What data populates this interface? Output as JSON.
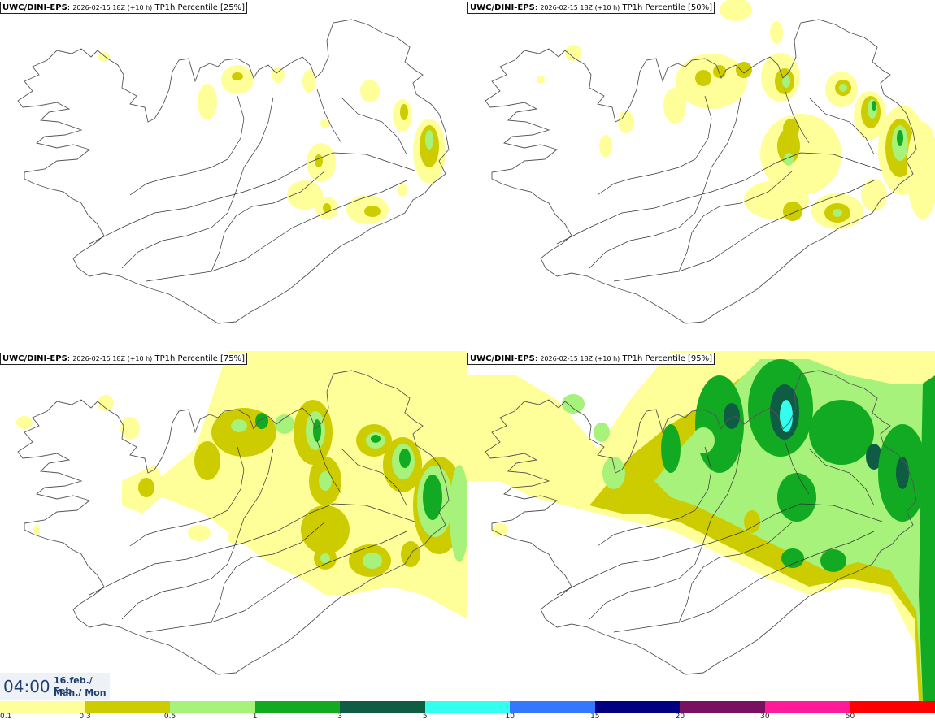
{
  "panels": [
    {
      "model": "UWC/DINI-EPS",
      "meta": "2026-02-15 18Z (+10 h)",
      "field": "TP1h Percentile [25%]"
    },
    {
      "model": "UWC/DINI-EPS",
      "meta": "2026-02-15 18Z (+10 h)",
      "field": "TP1h Percentile [50%]"
    },
    {
      "model": "UWC/DINI-EPS",
      "meta": "2026-02-15 18Z (+10 h)",
      "field": "TP1h Percentile [75%]"
    },
    {
      "model": "UWC/DINI-EPS",
      "meta": "2026-02-15 18Z (+10 h)",
      "field": "TP1h Percentile [95%]"
    }
  ],
  "valid_time": {
    "time": "04:00",
    "date": "16.feb./ Feb",
    "day": "Mán./ Mon"
  },
  "legend": {
    "colors": [
      "#ffff99",
      "#cccc00",
      "#a6f27a",
      "#11aa22",
      "#0e5c44",
      "#33ffee",
      "#3377ff",
      "#000080",
      "#7a1060",
      "#ff1a99",
      "#ff0000"
    ],
    "labels": [
      "0.1",
      "0.3",
      "0.5",
      "1",
      "3",
      "5",
      "10",
      "15",
      "20",
      "30",
      "50"
    ]
  },
  "palette": {
    "coast": "#555555",
    "road": "#333333",
    "bg": "#ffffff"
  }
}
